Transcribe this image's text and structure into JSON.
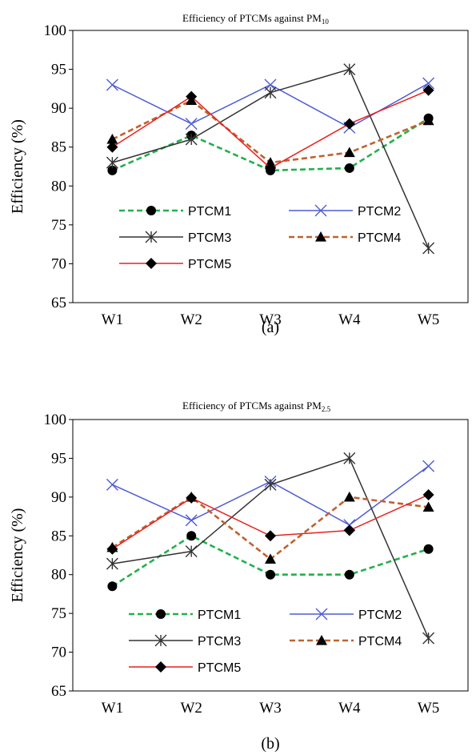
{
  "chart_data": [
    {
      "type": "line",
      "title_prefix": "Efficiency of PTCMs against PM",
      "title_sub": "10",
      "ylabel": "Efficiency (%)",
      "xlabel": "",
      "caption": "(a)",
      "categories": [
        "W1",
        "W2",
        "W3",
        "W4",
        "W5"
      ],
      "ylim": [
        65,
        100
      ],
      "yticks": [
        "65",
        "70",
        "75",
        "80",
        "85",
        "90",
        "95",
        "100"
      ],
      "grid": false,
      "legend_position": "inside-lower-left",
      "series": [
        {
          "name": "PTCM1",
          "values": [
            82,
            86.5,
            82,
            82.3,
            88.7
          ],
          "color": "#22b14c",
          "dash": "dashed",
          "marker": "circle"
        },
        {
          "name": "PTCM2",
          "values": [
            93,
            88,
            93,
            87.5,
            93.2
          ],
          "color": "#4f5bd5",
          "dash": "solid",
          "marker": "x"
        },
        {
          "name": "PTCM3",
          "values": [
            83,
            86,
            92,
            95,
            72
          ],
          "color": "#333333",
          "dash": "solid",
          "marker": "star"
        },
        {
          "name": "PTCM4",
          "values": [
            86,
            91,
            83,
            84.3,
            88.4
          ],
          "color": "#c0622e",
          "dash": "dashed",
          "marker": "triangle"
        },
        {
          "name": "PTCM5",
          "values": [
            85,
            91.5,
            82.3,
            88,
            92.3
          ],
          "color": "#e8211d",
          "dash": "solid",
          "marker": "diamond"
        }
      ]
    },
    {
      "type": "line",
      "title_prefix": "Efficiency of PTCMs against PM",
      "title_sub": "2.5",
      "ylabel": "Efficiency (%)",
      "xlabel": "",
      "caption": "(b)",
      "categories": [
        "W1",
        "W2",
        "W3",
        "W4",
        "W5"
      ],
      "ylim": [
        65,
        100
      ],
      "yticks": [
        "65",
        "70",
        "75",
        "80",
        "85",
        "90",
        "95",
        "100"
      ],
      "grid": false,
      "legend_position": "inside-lower-left",
      "series": [
        {
          "name": "PTCM1",
          "values": [
            78.5,
            85,
            80,
            80,
            83.3
          ],
          "color": "#22b14c",
          "dash": "dashed",
          "marker": "circle"
        },
        {
          "name": "PTCM2",
          "values": [
            91.6,
            87,
            92,
            86.4,
            94
          ],
          "color": "#4f5bd5",
          "dash": "solid",
          "marker": "x"
        },
        {
          "name": "PTCM3",
          "values": [
            81.4,
            83,
            91.6,
            95,
            71.8
          ],
          "color": "#333333",
          "dash": "solid",
          "marker": "star"
        },
        {
          "name": "PTCM4",
          "values": [
            83.5,
            90,
            82,
            90,
            88.7
          ],
          "color": "#c0622e",
          "dash": "dashed",
          "marker": "triangle"
        },
        {
          "name": "PTCM5",
          "values": [
            83.3,
            89.9,
            85,
            85.7,
            90.3
          ],
          "color": "#e8211d",
          "dash": "solid",
          "marker": "diamond"
        }
      ]
    }
  ]
}
